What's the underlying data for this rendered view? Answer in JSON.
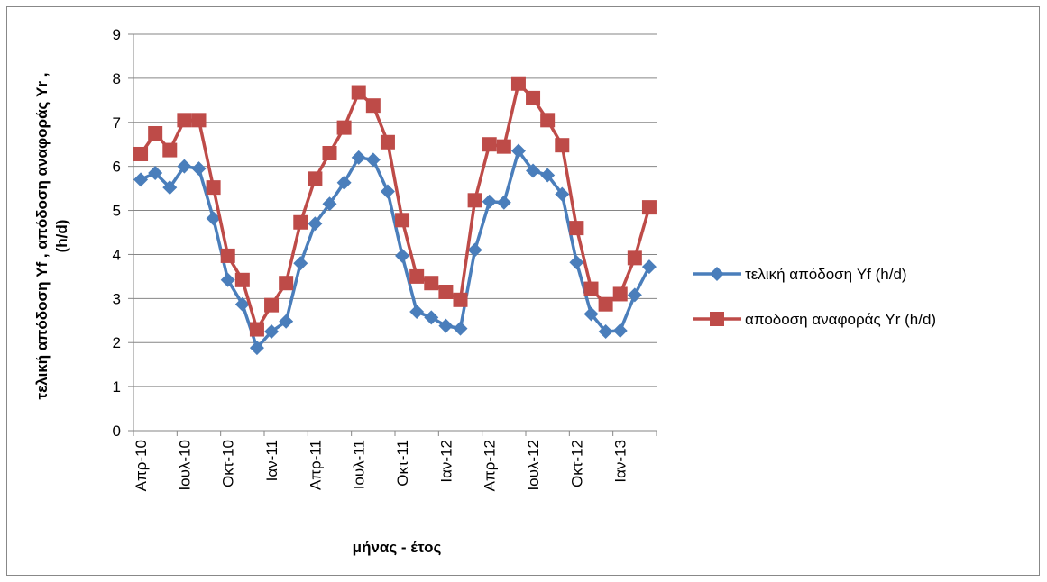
{
  "chart_data": {
    "type": "line",
    "xlabel": "μήνας - έτος",
    "ylabel_lines": [
      "τελική απόδοση Yf ,  απόδοση αναφοράς Yr ,",
      "(h/d)"
    ],
    "ylim": [
      0,
      9
    ],
    "yticks": [
      "0",
      "1",
      "2",
      "3",
      "4",
      "5",
      "6",
      "7",
      "8",
      "9"
    ],
    "grid": true,
    "legend_position": "right",
    "x": [
      "Απρ-10",
      "Μαϊ-10",
      "Ιουν-10",
      "Ιουλ-10",
      "Αυγ-10",
      "Σεπ-10",
      "Οκτ-10",
      "Νοε-10",
      "Δεκ-10",
      "Ιαν-11",
      "Φεβ-11",
      "Μαρ-11",
      "Απρ-11",
      "Μαϊ-11",
      "Ιουν-11",
      "Ιουλ-11",
      "Αυγ-11",
      "Σεπ-11",
      "Οκτ-11",
      "Νοε-11",
      "Δεκ-11",
      "Ιαν-12",
      "Φεβ-12",
      "Μαρ-12",
      "Απρ-12",
      "Μαϊ-12",
      "Ιουν-12",
      "Ιουλ-12",
      "Αυγ-12",
      "Σεπ-12",
      "Οκτ-12",
      "Νοε-12",
      "Δεκ-12",
      "Ιαν-13",
      "Φεβ-13",
      "Μαρ-13"
    ],
    "xtick_labels": [
      {
        "index": 0,
        "label": "Απρ-10"
      },
      {
        "index": 3,
        "label": "Ιουλ-10"
      },
      {
        "index": 6,
        "label": "Οκτ-10"
      },
      {
        "index": 9,
        "label": "Ιαν-11"
      },
      {
        "index": 12,
        "label": "Απρ-11"
      },
      {
        "index": 15,
        "label": "Ιουλ-11"
      },
      {
        "index": 18,
        "label": "Οκτ-11"
      },
      {
        "index": 21,
        "label": "Ιαν-12"
      },
      {
        "index": 24,
        "label": "Απρ-12"
      },
      {
        "index": 27,
        "label": "Ιουλ-12"
      },
      {
        "index": 30,
        "label": "Οκτ-12"
      },
      {
        "index": 33,
        "label": "Ιαν-13"
      }
    ],
    "series": [
      {
        "name": "τελική απόδοση Yf (h/d)",
        "color": "#4A7EBB",
        "marker": "diamond",
        "values": [
          5.7,
          5.85,
          5.52,
          6.0,
          5.95,
          4.82,
          3.42,
          2.87,
          1.88,
          2.25,
          2.48,
          3.8,
          4.7,
          5.15,
          5.63,
          6.2,
          6.15,
          5.43,
          3.97,
          2.7,
          2.57,
          2.38,
          2.32,
          4.1,
          5.2,
          5.18,
          6.35,
          5.9,
          5.8,
          5.37,
          3.82,
          2.65,
          2.25,
          2.27,
          3.08,
          3.72
        ]
      },
      {
        "name": "αποδοση αναφοράς Yr (h/d)",
        "color": "#BE4B48",
        "marker": "square",
        "values": [
          6.28,
          6.75,
          6.37,
          7.05,
          7.05,
          5.52,
          3.97,
          3.42,
          2.3,
          2.85,
          3.35,
          4.73,
          5.72,
          6.3,
          6.88,
          7.68,
          7.38,
          6.55,
          4.78,
          3.5,
          3.35,
          3.15,
          2.97,
          5.23,
          6.5,
          6.45,
          7.88,
          7.55,
          7.05,
          6.48,
          4.6,
          3.22,
          2.87,
          3.1,
          3.92,
          5.07
        ]
      }
    ]
  }
}
